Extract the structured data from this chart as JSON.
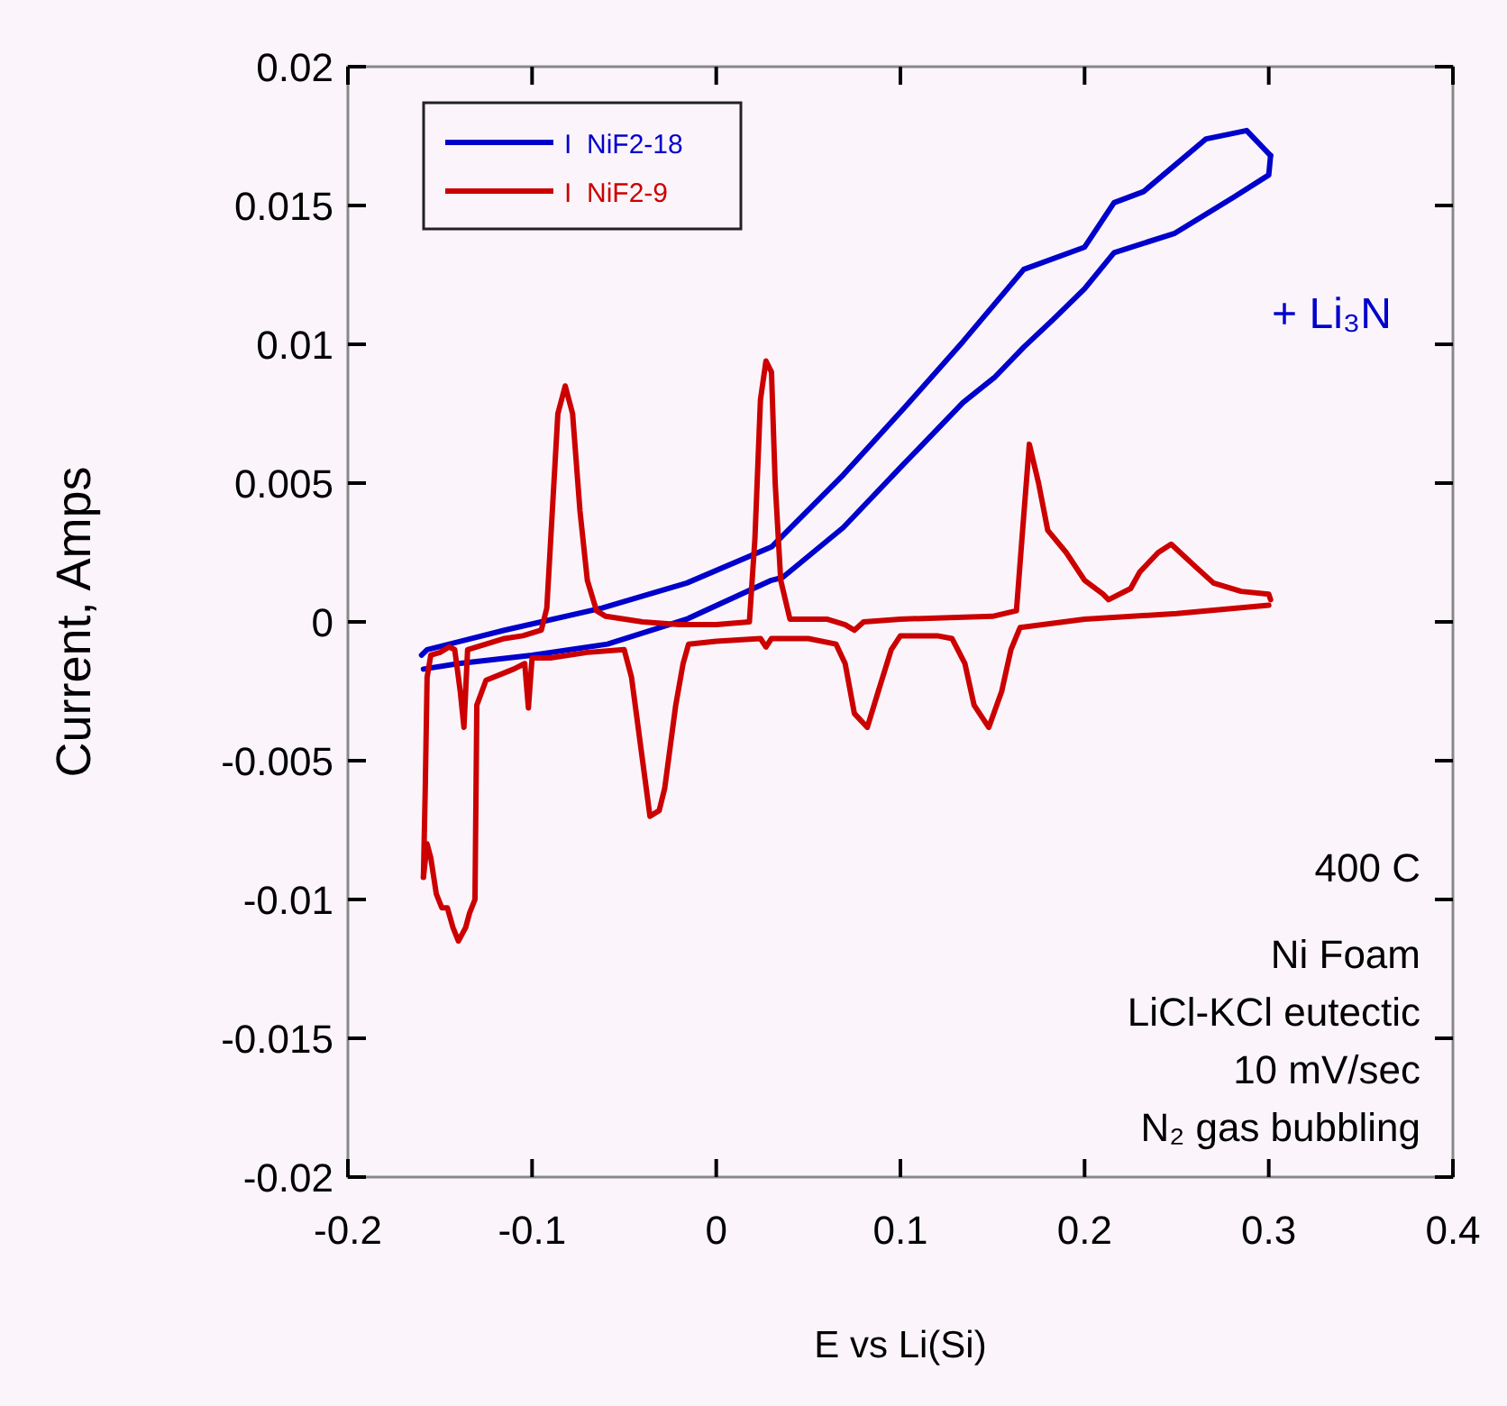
{
  "chart_data": {
    "type": "line",
    "xlabel": "E vs Li(Si)",
    "ylabel": "Current, Amps",
    "xlim": [
      -0.2,
      0.4
    ],
    "xticks": [
      -0.2,
      -0.1,
      0,
      0.1,
      0.2,
      0.3,
      0.4
    ],
    "ylim": [
      -0.02,
      0.02
    ],
    "yticks": [
      -0.02,
      -0.015,
      -0.01,
      -0.005,
      0,
      0.005,
      0.01,
      0.015,
      0.02
    ],
    "grid": false,
    "legend": "top left",
    "marker": "none",
    "line_style": "solid",
    "series": [
      {
        "name": "I  NiF2-18",
        "color": "#0000cc",
        "x": [
          -0.16,
          -0.157,
          -0.115,
          -0.062,
          -0.016,
          0.03,
          0.069,
          0.102,
          0.134,
          0.167,
          0.2,
          0.216,
          0.232,
          0.266,
          0.288,
          0.301
        ],
        "values": [
          -0.0012,
          -0.001,
          -0.0003,
          0.0005,
          0.0014,
          0.0027,
          0.0053,
          0.0077,
          0.0101,
          0.0127,
          0.0135,
          0.0151,
          0.0155,
          0.0174,
          0.0177,
          0.0168
        ]
      },
      {
        "color": "#0000cc",
        "x": [
          0.301,
          0.3,
          0.281,
          0.249,
          0.216,
          0.2,
          0.183,
          0.167,
          0.151,
          0.134,
          0.102,
          0.069,
          0.036,
          0.03,
          -0.016,
          -0.059,
          -0.1,
          -0.14,
          -0.159
        ],
        "values": [
          0.0168,
          0.0161,
          0.0153,
          0.014,
          0.0133,
          0.012,
          0.0109,
          0.0099,
          0.0088,
          0.0079,
          0.0057,
          0.0034,
          0.0016,
          0.0015,
          0.0001,
          -0.0008,
          -0.0012,
          -0.0015,
          -0.0017
        ]
      },
      {
        "name": "I  NiF2-9",
        "color": "#cc0000",
        "x": [
          0.3,
          0.25,
          0.2,
          0.165,
          0.16,
          0.155,
          0.148,
          0.14,
          0.135,
          0.128,
          0.12,
          0.1,
          0.095,
          0.088,
          0.082,
          0.075,
          0.07,
          0.065,
          0.05,
          0.03,
          0.027,
          0.024,
          0.0,
          -0.015,
          -0.018,
          -0.022,
          -0.028,
          -0.031,
          -0.036,
          -0.04,
          -0.046,
          -0.05,
          -0.07,
          -0.09,
          -0.1,
          -0.102,
          -0.104,
          -0.11,
          -0.125,
          -0.13,
          -0.131,
          -0.134,
          -0.136,
          -0.14,
          -0.143,
          -0.146,
          -0.149,
          -0.152,
          -0.155,
          -0.157,
          -0.159
        ],
        "values": [
          0.0006,
          0.0003,
          0.0001,
          -0.0002,
          -0.001,
          -0.0025,
          -0.0038,
          -0.003,
          -0.0015,
          -0.0006,
          -0.0005,
          -0.0005,
          -0.001,
          -0.0025,
          -0.0038,
          -0.0033,
          -0.0015,
          -0.0008,
          -0.0006,
          -0.0006,
          -0.0009,
          -0.0006,
          -0.0007,
          -0.0008,
          -0.0015,
          -0.003,
          -0.006,
          -0.0068,
          -0.007,
          -0.005,
          -0.002,
          -0.001,
          -0.0011,
          -0.0013,
          -0.0013,
          -0.0031,
          -0.0015,
          -0.0017,
          -0.0021,
          -0.003,
          -0.01,
          -0.0105,
          -0.011,
          -0.0115,
          -0.011,
          -0.0103,
          -0.0103,
          -0.0098,
          -0.0085,
          -0.008,
          -0.0092
        ]
      },
      {
        "color": "#cc0000",
        "x": [
          -0.159,
          -0.158,
          -0.157,
          -0.155,
          -0.15,
          -0.145,
          -0.142,
          -0.139,
          -0.137,
          -0.135,
          -0.125,
          -0.115,
          -0.105,
          -0.095,
          -0.092,
          -0.089,
          -0.086,
          -0.082,
          -0.078,
          -0.074,
          -0.07,
          -0.065,
          -0.06,
          -0.04,
          -0.02,
          0.0,
          0.018,
          0.021,
          0.024,
          0.027,
          0.03,
          0.032,
          0.035,
          0.04,
          0.06,
          0.07,
          0.075,
          0.08,
          0.1,
          0.15,
          0.163,
          0.166,
          0.17,
          0.175,
          0.18,
          0.19,
          0.2,
          0.21,
          0.213,
          0.225,
          0.23,
          0.24,
          0.247,
          0.26,
          0.27,
          0.285,
          0.3,
          0.301
        ],
        "values": [
          -0.0092,
          -0.006,
          -0.002,
          -0.0012,
          -0.0011,
          -0.0009,
          -0.001,
          -0.0025,
          -0.0038,
          -0.001,
          -0.0008,
          -0.0006,
          -0.0005,
          -0.0003,
          0.0005,
          0.004,
          0.0075,
          0.0085,
          0.0075,
          0.004,
          0.0015,
          0.0004,
          0.0002,
          0.0,
          -0.0001,
          -0.0001,
          0.0,
          0.003,
          0.008,
          0.0094,
          0.009,
          0.005,
          0.0015,
          0.0001,
          0.0001,
          -0.0001,
          -0.0003,
          0.0,
          0.0001,
          0.0002,
          0.0004,
          0.003,
          0.0064,
          0.005,
          0.0033,
          0.0025,
          0.0015,
          0.001,
          0.0008,
          0.0012,
          0.0018,
          0.0025,
          0.0028,
          0.002,
          0.0014,
          0.0011,
          0.001,
          0.0008
        ]
      }
    ],
    "annotations": [
      "+ Li₃N",
      "400 C",
      "Ni Foam",
      "LiCl-KCl eutectic",
      "10 mV/sec",
      "N₂ gas bubbling"
    ]
  }
}
